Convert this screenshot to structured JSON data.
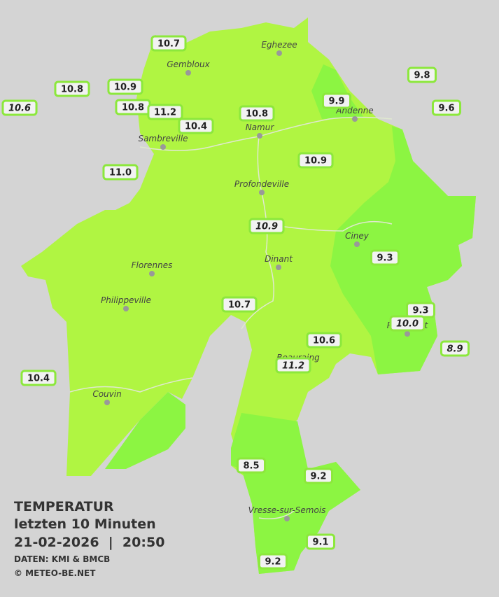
{
  "cities": [
    "Eghezee",
    "Gembloux",
    "Andenne",
    "Namur",
    "Sambreville",
    "Profondeville",
    "Ciney",
    "Dinant",
    "Florennes",
    "Philippeville",
    "Rochefort",
    "Beauraing",
    "Couvin",
    "Vresse-sur-Semois"
  ],
  "stations": [
    {
      "label": "10.7",
      "italic": false
    },
    {
      "label": "10.8",
      "italic": false
    },
    {
      "label": "10.9",
      "italic": false
    },
    {
      "label": "10.6",
      "italic": true
    },
    {
      "label": "10.8",
      "italic": false
    },
    {
      "label": "11.2",
      "italic": false
    },
    {
      "label": "10.4",
      "italic": false
    },
    {
      "label": "10.8",
      "italic": false
    },
    {
      "label": "9.9",
      "italic": false
    },
    {
      "label": "9.8",
      "italic": false
    },
    {
      "label": "9.6",
      "italic": false
    },
    {
      "label": "11.0",
      "italic": false
    },
    {
      "label": "10.9",
      "italic": false
    },
    {
      "label": "10.9",
      "italic": true
    },
    {
      "label": "9.3",
      "italic": false
    },
    {
      "label": "10.7",
      "italic": false
    },
    {
      "label": "9.3",
      "italic": false
    },
    {
      "label": "10.0",
      "italic": true
    },
    {
      "label": "8.9",
      "italic": true
    },
    {
      "label": "10.6",
      "italic": false
    },
    {
      "label": "11.2",
      "italic": true
    },
    {
      "label": "10.4",
      "italic": false
    },
    {
      "label": "8.5",
      "italic": false
    },
    {
      "label": "9.2",
      "italic": false
    },
    {
      "label": "9.1",
      "italic": false
    },
    {
      "label": "9.2",
      "italic": false
    }
  ],
  "legend": {
    "title": "TEMPERATUR",
    "subtitle": "letzten 10 Minuten",
    "datetime": "21-02-2026  |  20:50",
    "source": "DATEN: KMI & BMCB",
    "copyright": "© METEO-BE.NET"
  }
}
